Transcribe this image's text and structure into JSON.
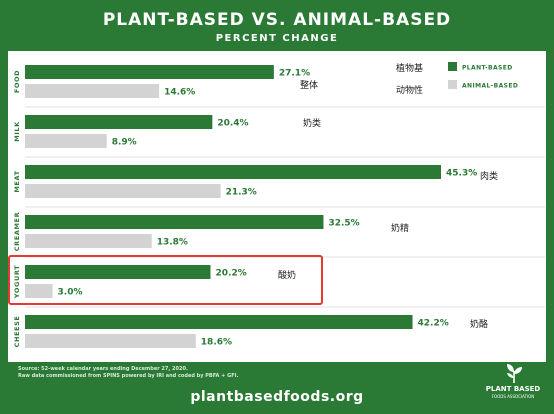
{
  "header": {
    "title": "PLANT-BASED VS. ANIMAL-BASED",
    "subtitle": "PERCENT CHANGE"
  },
  "chart_data": {
    "type": "bar",
    "orientation": "horizontal",
    "title": "PLANT-BASED VS. ANIMAL-BASED",
    "subtitle": "PERCENT CHANGE",
    "categories": [
      "FOOD",
      "MILK",
      "MEAT",
      "CREAMER",
      "YOGURT",
      "CHEESE"
    ],
    "category_annotations": [
      "整体",
      "奶类",
      "肉类",
      "奶精",
      "酸奶",
      "奶酪"
    ],
    "series": [
      {
        "name": "PLANT-BASED",
        "values": [
          27.1,
          20.4,
          45.3,
          32.5,
          20.2,
          42.2
        ],
        "labels": [
          "27.1%",
          "20.4%",
          "45.3%",
          "32.5%",
          "20.2%",
          "42.2%"
        ]
      },
      {
        "name": "ANIMAL-BASED",
        "values": [
          14.6,
          8.9,
          21.3,
          13.8,
          3.0,
          18.6
        ],
        "labels": [
          "14.6%",
          "8.9%",
          "21.3%",
          "13.8%",
          "3.0%",
          "18.6%"
        ]
      }
    ],
    "legend": {
      "position": "top-right",
      "entries": [
        "PLANT-BASED",
        "ANIMAL-BASED"
      ],
      "annotations": [
        "植物基",
        "动物性"
      ]
    },
    "highlighted_category": "YOGURT",
    "grid": false,
    "colors": {
      "plant": "#2a7a35",
      "animal": "#d3d3d3",
      "highlight": "#e53935",
      "label": "#2a7a35",
      "category": "#2a7a35"
    }
  },
  "footer": {
    "source_lines": [
      "Source: 52-week calendar years ending December 27, 2020.",
      "Raw data commissioned from SPINS powered by IRI and coded by PBFA + GFI."
    ],
    "url": "plantbasedfoods.org",
    "logo_line1": "PLANT BASED",
    "logo_line2": "FOODS ASSOCIATION"
  }
}
